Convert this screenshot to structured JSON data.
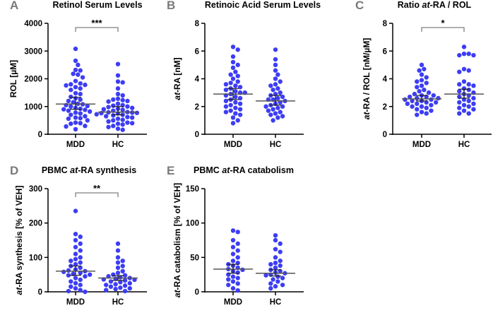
{
  "chart_data": [
    {
      "type": "scatter",
      "panel": "A",
      "title": [
        {
          "text": "Retinol Serum Levels",
          "italic": false
        }
      ],
      "ylabel": [
        {
          "text": "ROL [µM]",
          "italic": false
        }
      ],
      "categories": [
        "MDD",
        "HC"
      ],
      "ylim": [
        0,
        4000
      ],
      "yticks": [
        0,
        1000,
        2000,
        3000,
        4000
      ],
      "significance": "***",
      "series": [
        {
          "name": "MDD",
          "mean": 1090,
          "ci": [
            900,
            1330
          ],
          "values": [
            3080,
            2650,
            2500,
            2320,
            2300,
            2180,
            2150,
            2050,
            1920,
            1830,
            1800,
            1780,
            1760,
            1700,
            1650,
            1600,
            1480,
            1450,
            1350,
            1300,
            1250,
            1200,
            1150,
            1100,
            1080,
            1050,
            1020,
            1000,
            950,
            920,
            900,
            880,
            850,
            820,
            780,
            750,
            700,
            650,
            600,
            580,
            560,
            500,
            420,
            400,
            380,
            300,
            280,
            180
          ]
        },
        {
          "name": "HC",
          "mean": 800,
          "ci": [
            700,
            1000
          ],
          "values": [
            2530,
            2120,
            1900,
            1870,
            1650,
            1450,
            1400,
            1280,
            1250,
            1230,
            1200,
            1180,
            1100,
            1050,
            1030,
            1000,
            980,
            950,
            920,
            900,
            880,
            850,
            800,
            790,
            780,
            770,
            760,
            750,
            720,
            700,
            680,
            650,
            620,
            600,
            560,
            520,
            500,
            460,
            420,
            400,
            380,
            350,
            300,
            260,
            200,
            160
          ]
        }
      ]
    },
    {
      "type": "scatter",
      "panel": "B",
      "title": [
        {
          "text": "Retinoic Acid Serum Levels",
          "italic": false
        }
      ],
      "ylabel": [
        {
          "text": "at",
          "italic": true
        },
        {
          "text": "-RA [nM]",
          "italic": false
        }
      ],
      "categories": [
        "MDD",
        "HC"
      ],
      "ylim": [
        0,
        8
      ],
      "yticks": [
        0,
        2,
        4,
        6,
        8
      ],
      "significance": "",
      "series": [
        {
          "name": "MDD",
          "mean": 2.9,
          "ci": [
            2.5,
            3.3
          ],
          "values": [
            6.3,
            6.1,
            5.6,
            5.2,
            5.0,
            4.8,
            4.5,
            4.3,
            4.2,
            4.0,
            3.8,
            3.7,
            3.6,
            3.5,
            3.4,
            3.3,
            3.2,
            3.1,
            3.0,
            3.0,
            2.9,
            2.8,
            2.7,
            2.6,
            2.5,
            2.4,
            2.3,
            2.2,
            2.1,
            2.0,
            1.9,
            1.8,
            1.7,
            1.6,
            1.5,
            1.4,
            1.2,
            1.0,
            0.8
          ]
        },
        {
          "name": "HC",
          "mean": 2.4,
          "ci": [
            2.1,
            2.8
          ],
          "values": [
            6.1,
            5.4,
            5.0,
            4.6,
            4.3,
            4.0,
            3.8,
            3.6,
            3.5,
            3.3,
            3.2,
            3.0,
            2.9,
            2.8,
            2.7,
            2.6,
            2.5,
            2.5,
            2.4,
            2.3,
            2.2,
            2.1,
            2.0,
            2.0,
            1.9,
            1.8,
            1.7,
            1.6,
            1.5,
            1.4,
            1.3,
            1.2,
            1.0
          ]
        }
      ]
    },
    {
      "type": "scatter",
      "panel": "C",
      "title": [
        {
          "text": "Ratio ",
          "italic": false
        },
        {
          "text": "at",
          "italic": true
        },
        {
          "text": "-RA / ROL",
          "italic": false
        }
      ],
      "ylabel": [
        {
          "text": "at",
          "italic": true
        },
        {
          "text": "-RA / ROL [nM/µM]",
          "italic": false
        }
      ],
      "categories": [
        "MDD",
        "HC"
      ],
      "ylim": [
        0,
        8
      ],
      "yticks": [
        0,
        2,
        4,
        6,
        8
      ],
      "significance": "*",
      "series": [
        {
          "name": "MDD",
          "mean": 2.55,
          "ci": [
            2.4,
            2.8
          ],
          "values": [
            5.0,
            4.7,
            4.6,
            4.3,
            4.1,
            3.9,
            3.8,
            3.7,
            3.5,
            3.4,
            3.2,
            3.1,
            3.0,
            2.9,
            2.8,
            2.8,
            2.7,
            2.7,
            2.6,
            2.6,
            2.5,
            2.5,
            2.4,
            2.4,
            2.3,
            2.3,
            2.2,
            2.2,
            2.1,
            2.0,
            2.0,
            1.9,
            1.8,
            1.7,
            1.6,
            1.5,
            1.4
          ]
        },
        {
          "name": "HC",
          "mean": 2.9,
          "ci": [
            2.6,
            3.25
          ],
          "values": [
            6.3,
            5.8,
            5.8,
            5.7,
            5.7,
            4.7,
            4.6,
            4.5,
            3.8,
            3.6,
            3.6,
            3.5,
            3.3,
            3.2,
            3.1,
            3.0,
            2.9,
            2.8,
            2.7,
            2.6,
            2.5,
            2.4,
            2.3,
            2.2,
            2.1,
            2.0,
            1.9,
            1.8,
            1.7,
            1.5,
            1.5
          ]
        }
      ]
    },
    {
      "type": "scatter",
      "panel": "D",
      "title": [
        {
          "text": "PBMC ",
          "italic": false
        },
        {
          "text": "at",
          "italic": true
        },
        {
          "text": "-RA synthesis",
          "italic": false
        }
      ],
      "ylabel": [
        {
          "text": "at",
          "italic": true
        },
        {
          "text": "-RA synthesis [% of VEH]",
          "italic": false
        }
      ],
      "categories": [
        "MDD",
        "HC"
      ],
      "ylim": [
        0,
        300
      ],
      "yticks": [
        0,
        100,
        200,
        300
      ],
      "significance": "**",
      "series": [
        {
          "name": "MDD",
          "mean": 60,
          "ci": [
            48,
            75
          ],
          "values": [
            235,
            168,
            160,
            150,
            140,
            130,
            120,
            110,
            100,
            95,
            90,
            85,
            80,
            75,
            70,
            65,
            62,
            60,
            58,
            55,
            52,
            50,
            48,
            45,
            40,
            35,
            30,
            25,
            20,
            15,
            10,
            5,
            2,
            0
          ]
        },
        {
          "name": "HC",
          "mean": 40,
          "ci": [
            33,
            47
          ],
          "values": [
            140,
            120,
            100,
            90,
            85,
            75,
            70,
            60,
            55,
            50,
            48,
            45,
            42,
            40,
            38,
            36,
            35,
            33,
            30,
            28,
            25,
            22,
            20,
            18,
            15,
            12,
            10,
            8,
            5,
            2
          ]
        }
      ]
    },
    {
      "type": "scatter",
      "panel": "E",
      "title": [
        {
          "text": "PBMC ",
          "italic": false
        },
        {
          "text": "at",
          "italic": true
        },
        {
          "text": "-RA catabolism",
          "italic": false
        }
      ],
      "ylabel": [
        {
          "text": "at",
          "italic": true
        },
        {
          "text": "-RA catabolism [% of VEH]",
          "italic": false
        }
      ],
      "categories": [
        "MDD",
        "HC"
      ],
      "ylim": [
        0,
        150
      ],
      "yticks": [
        0,
        50,
        100,
        150
      ],
      "significance": "",
      "series": [
        {
          "name": "MDD",
          "mean": 33,
          "ci": [
            27,
            40
          ],
          "values": [
            89,
            87,
            75,
            70,
            65,
            60,
            55,
            50,
            45,
            42,
            40,
            38,
            35,
            33,
            32,
            30,
            28,
            25,
            22,
            20,
            18,
            15,
            12,
            10,
            5,
            2
          ]
        },
        {
          "name": "HC",
          "mean": 27,
          "ci": [
            23,
            32
          ],
          "values": [
            82,
            75,
            70,
            62,
            58,
            50,
            45,
            42,
            40,
            38,
            35,
            32,
            30,
            28,
            27,
            25,
            24,
            22,
            20,
            18,
            15,
            12,
            10,
            8,
            5
          ]
        }
      ]
    }
  ],
  "colors": {
    "dot": "#3d3df5",
    "axis": "#000000",
    "bracket": "#7f7f7f",
    "mean": "#555555",
    "panel_letter": "#7a7a7a"
  }
}
